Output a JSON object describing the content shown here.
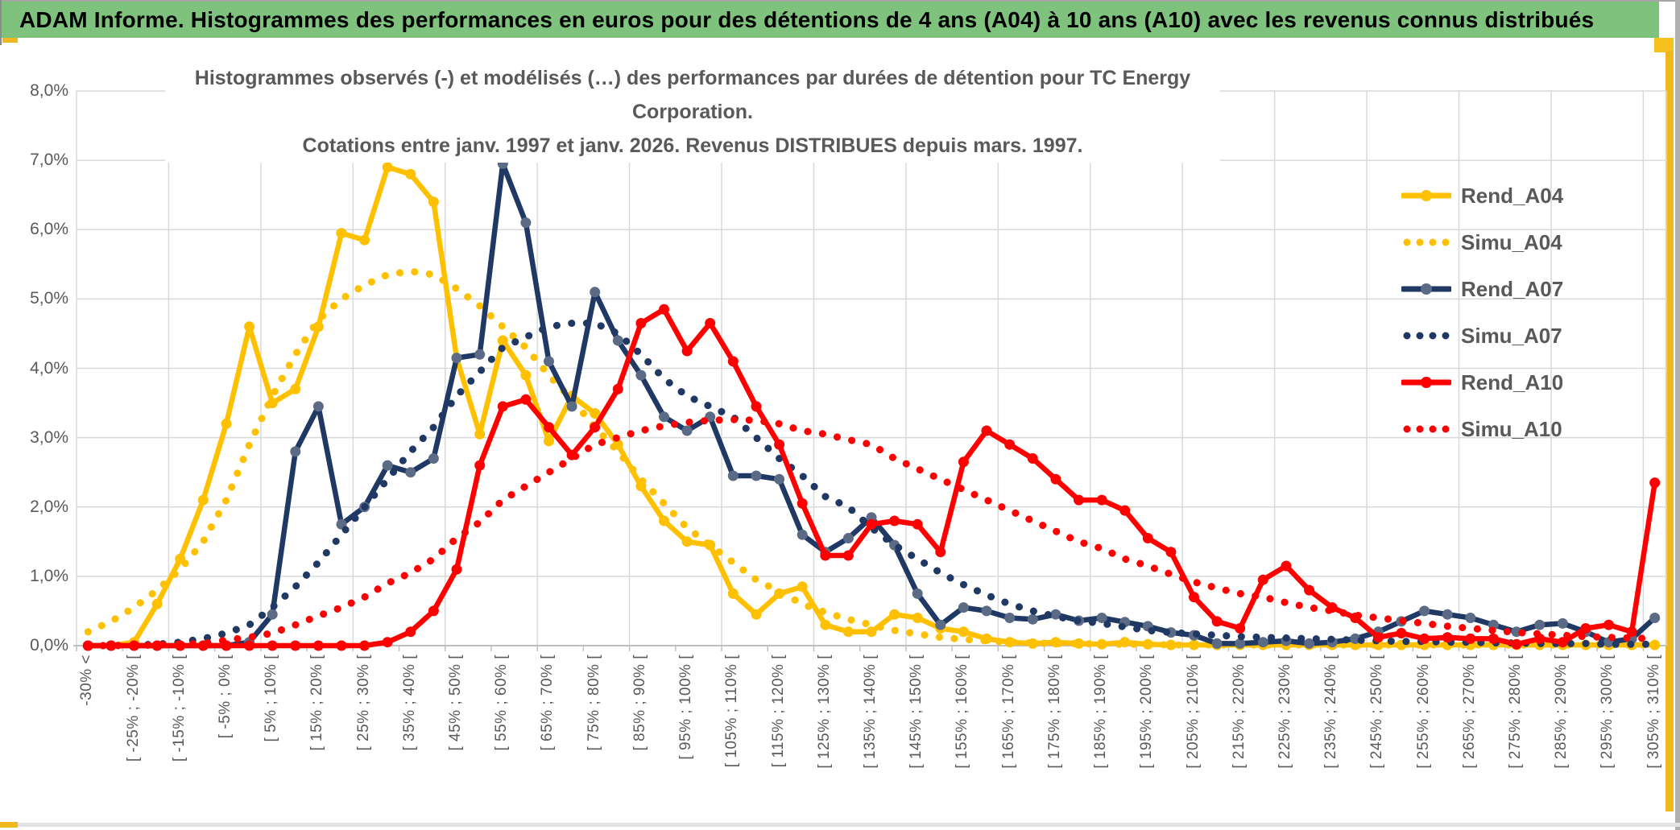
{
  "header": {
    "title": "ADAM Informe. Histogrammes des performances en euros pour des détentions de 4 ans (A04) à 10 ans (A10) avec les revenus connus distribués"
  },
  "colors": {
    "header_green": "#7ec27d",
    "accent_gold": "#f0b81f",
    "gold_series": "#FFC000",
    "navy_series": "#1F3864",
    "navy_marker": "#5B6B85",
    "red_series": "#FF0000",
    "gridline": "#D9D9D9",
    "axis_line": "#BFBFBF",
    "text_gray": "#595959"
  },
  "chart_data": {
    "type": "line",
    "title_line1": "Histogrammes observés (-) et modélisés (…) des performances par durées de détention pour TC Energy Corporation.",
    "title_line2": "Cotations entre janv. 1997 et janv. 2026. Revenus DISTRIBUES depuis mars. 1997.",
    "ylim": [
      0,
      8
    ],
    "ytick_labels": [
      "0,0%",
      "1,0%",
      "2,0%",
      "3,0%",
      "4,0%",
      "5,0%",
      "6,0%",
      "7,0%",
      "8,0%"
    ],
    "grid": {
      "horizontal": true,
      "vertical": true,
      "v_interval_categories": 4
    },
    "x_label_every": 2,
    "x_tick_labels": [
      "-30% <",
      "[ -25% ; -20% [",
      "[ -15% ; -10% [",
      "[ -5% ; 0% [",
      "[ 5% ; 10% [",
      "[ 15% ; 20% [",
      "[ 25% ; 30% [",
      "[ 35% ; 40% [",
      "[ 45% ; 50% [",
      "[ 55% ; 60% [",
      "[ 65% ; 70% [",
      "[ 75% ; 80% [",
      "[ 85% ; 90% [",
      "[ 95% ; 100% [",
      "[ 105% ; 110% [",
      "[ 115% ; 120% [",
      "[ 125% ; 130% [",
      "[ 135% ; 140% [",
      "[ 145% ; 150% [",
      "[ 155% ; 160% [",
      "[ 165% ; 170% [",
      "[ 175% ; 180% [",
      "[ 185% ; 190% [",
      "[ 195% ; 200% [",
      "[ 205% ; 210% [",
      "[ 215% ; 220% [",
      "[ 225% ; 230% [",
      "[ 235% ; 240% [",
      "[ 245% ; 250% [",
      "[ 255% ; 260% [",
      "[ 265% ; 270% [",
      "[ 275% ; 280% [",
      "[ 285% ; 290% [",
      "[ 295% ; 300% [",
      "[ 305% ; 310% ["
    ],
    "legend_position": "right",
    "series": [
      {
        "name": "Rend_A04",
        "color": "#FFC000",
        "marker_color": "#FFC000",
        "line_style": "solid",
        "values": [
          0,
          0,
          0.05,
          0.6,
          1.25,
          2.1,
          3.2,
          4.6,
          3.5,
          3.7,
          4.6,
          5.95,
          5.85,
          6.9,
          6.8,
          6.4,
          4.15,
          3.05,
          4.4,
          3.9,
          2.95,
          3.6,
          3.35,
          2.9,
          2.3,
          1.8,
          1.5,
          1.45,
          0.75,
          0.45,
          0.75,
          0.85,
          0.3,
          0.2,
          0.2,
          0.45,
          0.4,
          0.25,
          0.2,
          0.1,
          0.05,
          0.03,
          0.05,
          0.03,
          0.02,
          0.05,
          0.02,
          0.01,
          0.01,
          0.01,
          0.01,
          0.01,
          0.01,
          0.01,
          0.01,
          0.01,
          0.01,
          0.01,
          0.01,
          0.01,
          0.01,
          0.01,
          0.01,
          0.01,
          0.01,
          0.01,
          0.01,
          0.01,
          0.01
        ]
      },
      {
        "name": "Simu_A04",
        "color": "#FFC000",
        "marker_color": "#FFC000",
        "line_style": "dotted",
        "values": [
          0.2,
          0.35,
          0.55,
          0.8,
          1.1,
          1.5,
          2.1,
          2.9,
          3.6,
          4.2,
          4.7,
          5.0,
          5.2,
          5.35,
          5.4,
          5.35,
          5.15,
          4.9,
          4.6,
          4.3,
          3.9,
          3.55,
          3.15,
          2.8,
          2.4,
          2.05,
          1.7,
          1.45,
          1.2,
          0.95,
          0.78,
          0.6,
          0.48,
          0.38,
          0.3,
          0.22,
          0.17,
          0.12,
          0.09,
          0.07,
          0.05,
          0.04,
          0.03,
          0.03,
          0.02,
          0.02,
          0.02,
          0.01,
          0.01,
          0.01,
          0.01,
          0.01,
          0.01,
          0.01,
          0.01,
          0.01,
          0.01,
          0.01,
          0.01,
          0.01,
          0.01,
          0.01,
          0.01,
          0.01,
          0.01,
          0.01,
          0.01,
          0.01,
          0.01
        ]
      },
      {
        "name": "Rend_A07",
        "color": "#1F3864",
        "marker_color": "#5B6B85",
        "line_style": "solid",
        "values": [
          0,
          0,
          0,
          0,
          0,
          0,
          0,
          0.05,
          0.45,
          2.8,
          3.45,
          1.75,
          2.0,
          2.6,
          2.5,
          2.7,
          4.15,
          4.2,
          6.95,
          6.1,
          4.1,
          3.45,
          5.1,
          4.4,
          3.9,
          3.3,
          3.1,
          3.3,
          2.45,
          2.45,
          2.4,
          1.6,
          1.35,
          1.55,
          1.85,
          1.45,
          0.75,
          0.3,
          0.55,
          0.5,
          0.4,
          0.38,
          0.45,
          0.36,
          0.4,
          0.34,
          0.28,
          0.19,
          0.15,
          0.03,
          0.03,
          0.05,
          0.07,
          0.03,
          0.05,
          0.1,
          0.2,
          0.35,
          0.5,
          0.45,
          0.4,
          0.3,
          0.2,
          0.3,
          0.32,
          0.2,
          0.05,
          0.1,
          0.4
        ]
      },
      {
        "name": "Simu_A07",
        "color": "#1F3864",
        "marker_color": "#1F3864",
        "line_style": "dotted",
        "values": [
          0,
          0,
          0.01,
          0.02,
          0.05,
          0.1,
          0.18,
          0.3,
          0.55,
          0.85,
          1.2,
          1.6,
          2.0,
          2.4,
          2.8,
          3.15,
          3.6,
          3.95,
          4.3,
          4.45,
          4.6,
          4.65,
          4.65,
          4.5,
          4.2,
          3.85,
          3.6,
          3.45,
          3.3,
          3.0,
          2.7,
          2.45,
          2.15,
          2.0,
          1.7,
          1.45,
          1.25,
          1.05,
          0.88,
          0.73,
          0.6,
          0.5,
          0.42,
          0.36,
          0.32,
          0.27,
          0.22,
          0.19,
          0.17,
          0.15,
          0.13,
          0.12,
          0.11,
          0.1,
          0.09,
          0.08,
          0.07,
          0.06,
          0.06,
          0.05,
          0.05,
          0.04,
          0.04,
          0.03,
          0.03,
          0.03,
          0.02,
          0.02,
          0.02
        ]
      },
      {
        "name": "Rend_A10",
        "color": "#FF0000",
        "marker_color": "#FF0000",
        "line_style": "solid",
        "values": [
          0,
          0,
          0,
          0,
          0,
          0,
          0,
          0,
          0,
          0,
          0,
          0,
          0,
          0.05,
          0.2,
          0.5,
          1.1,
          2.6,
          3.45,
          3.55,
          3.15,
          2.75,
          3.15,
          3.7,
          4.65,
          4.85,
          4.25,
          4.65,
          4.1,
          3.45,
          2.9,
          2.05,
          1.3,
          1.3,
          1.75,
          1.8,
          1.75,
          1.35,
          2.65,
          3.1,
          2.9,
          2.7,
          2.4,
          2.1,
          2.1,
          1.95,
          1.55,
          1.35,
          0.7,
          0.35,
          0.25,
          0.95,
          1.15,
          0.8,
          0.55,
          0.4,
          0.12,
          0.18,
          0.1,
          0.12,
          0.1,
          0.1,
          0.02,
          0.1,
          0.05,
          0.25,
          0.3,
          0.2,
          2.35
        ]
      },
      {
        "name": "Simu_A10",
        "color": "#FF0000",
        "marker_color": "#FF0000",
        "line_style": "dotted",
        "values": [
          0,
          0,
          0,
          0.01,
          0.02,
          0.03,
          0.08,
          0.12,
          0.18,
          0.3,
          0.43,
          0.55,
          0.7,
          0.9,
          1.05,
          1.25,
          1.55,
          1.78,
          2.1,
          2.3,
          2.5,
          2.7,
          2.9,
          3.0,
          3.1,
          3.17,
          3.22,
          3.25,
          3.26,
          3.25,
          3.2,
          3.1,
          3.05,
          2.97,
          2.9,
          2.7,
          2.55,
          2.4,
          2.25,
          2.1,
          1.95,
          1.8,
          1.65,
          1.5,
          1.4,
          1.25,
          1.15,
          1.03,
          0.92,
          0.83,
          0.75,
          0.7,
          0.62,
          0.55,
          0.5,
          0.44,
          0.4,
          0.36,
          0.32,
          0.28,
          0.25,
          0.22,
          0.19,
          0.17,
          0.15,
          0.13,
          0.12,
          0.11,
          0.1
        ]
      }
    ]
  }
}
